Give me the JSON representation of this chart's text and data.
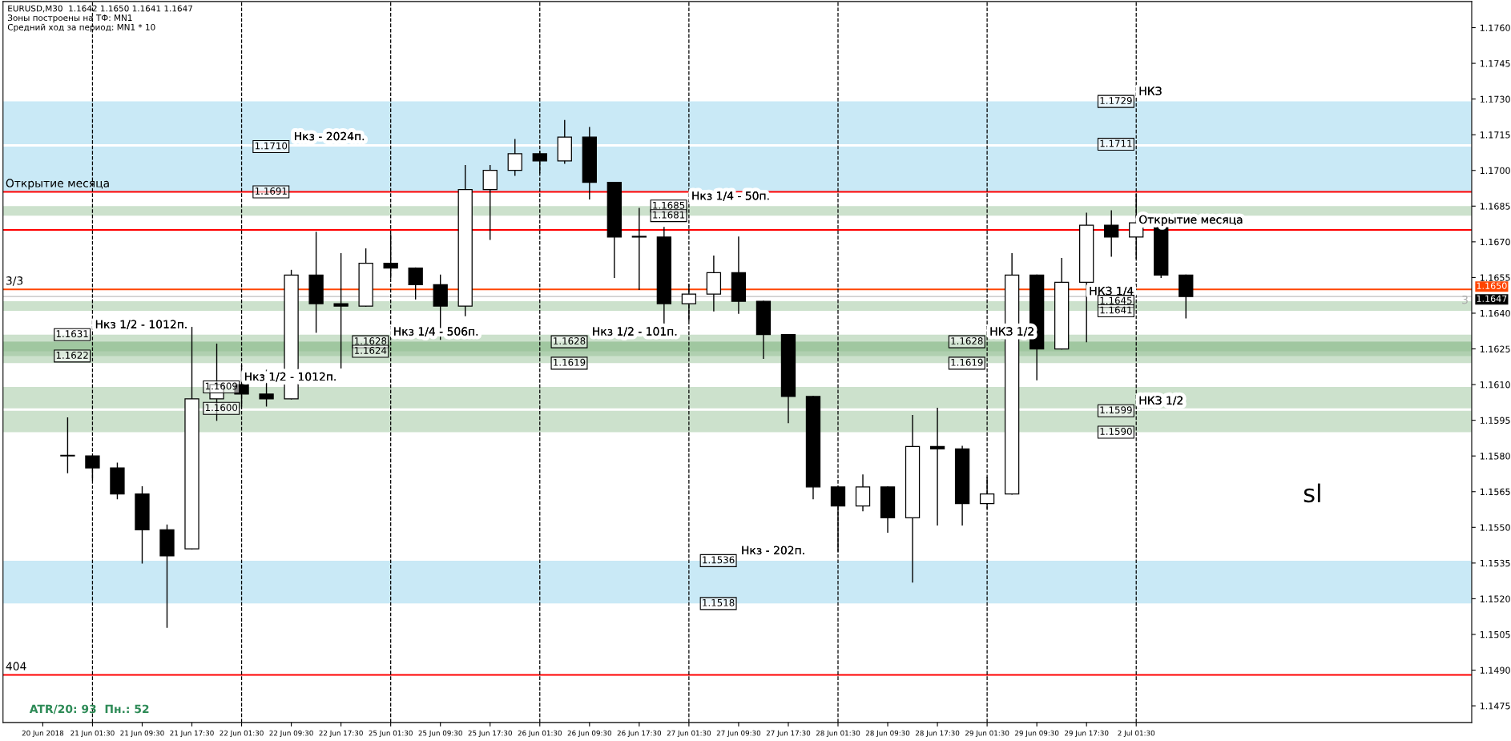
{
  "chart_data": {
    "type": "candlestick",
    "categories": [
      "20 Jun 2018",
      null,
      "21 Jun 01:30",
      null,
      "21 Jun 09:30",
      null,
      "21 Jun 17:30",
      null,
      "22 Jun 01:30",
      null,
      "22 Jun 09:30",
      null,
      "22 Jun 17:30",
      null,
      "25 Jun 01:30",
      null,
      "25 Jun 09:30",
      null,
      "25 Jun 17:30",
      null,
      "26 Jun 01:30",
      null,
      "26 Jun 09:30",
      null,
      "26 Jun 17:30",
      null,
      "27 Jun 01:30",
      null,
      "27 Jun 09:30",
      null,
      "27 Jun 17:30",
      null,
      "28 Jun 01:30",
      null,
      "28 Jun 09:30",
      null,
      "28 Jun 17:30",
      null,
      "29 Jun 01:30",
      null,
      "29 Jun 09:30",
      null,
      "29 Jun 17:30",
      null,
      "2 Jul 01:30",
      null,
      null,
      null,
      null,
      null,
      null,
      null,
      null,
      null,
      null,
      null,
      null,
      null
    ],
    "ohlc": [
      null,
      [
        1.158,
        1.1596,
        1.1573,
        1.158
      ],
      [
        1.158,
        1.158,
        1.157,
        1.1575
      ],
      [
        1.1575,
        1.1577,
        1.1562,
        1.1564
      ],
      [
        1.1564,
        1.1567,
        1.1535,
        1.1549
      ],
      [
        1.1549,
        1.1551,
        1.1508,
        1.1538
      ],
      [
        1.1541,
        1.1634,
        1.1541,
        1.1604
      ],
      [
        1.1604,
        1.1627,
        1.1595,
        1.161
      ],
      [
        1.161,
        1.1618,
        1.1601,
        1.1606
      ],
      [
        1.1606,
        1.1616,
        1.1601,
        1.1604
      ],
      [
        1.1604,
        1.1658,
        1.1604,
        1.1656
      ],
      [
        1.1656,
        1.1674,
        1.1632,
        1.1644
      ],
      [
        1.1644,
        1.1665,
        1.1617,
        1.1643
      ],
      [
        1.1643,
        1.1667,
        1.1643,
        1.1661
      ],
      [
        1.1661,
        1.1673,
        1.1655,
        1.1659
      ],
      [
        1.1659,
        1.1659,
        1.1646,
        1.1652
      ],
      [
        1.1652,
        1.1656,
        1.1629,
        1.1643
      ],
      [
        1.1643,
        1.1702,
        1.1639,
        1.1692
      ],
      [
        1.1692,
        1.1702,
        1.1671,
        1.17
      ],
      [
        1.17,
        1.1713,
        1.1698,
        1.1707
      ],
      [
        1.1707,
        1.1708,
        1.1699,
        1.1704
      ],
      [
        1.1704,
        1.1721,
        1.1703,
        1.1714
      ],
      [
        1.1714,
        1.1718,
        1.1688,
        1.1695
      ],
      [
        1.1695,
        1.1695,
        1.1655,
        1.1672
      ],
      [
        1.1672,
        1.1684,
        1.165,
        1.1672
      ],
      [
        1.1672,
        1.1676,
        1.1635,
        1.1644
      ],
      [
        1.1644,
        1.1652,
        1.1637,
        1.1648
      ],
      [
        1.1648,
        1.1664,
        1.1641,
        1.1657
      ],
      [
        1.1657,
        1.1672,
        1.164,
        1.1645
      ],
      [
        1.1645,
        1.1645,
        1.1621,
        1.1631
      ],
      [
        1.1631,
        1.1631,
        1.1594,
        1.1605
      ],
      [
        1.1605,
        1.1605,
        1.1562,
        1.1567
      ],
      [
        1.1567,
        1.1567,
        1.154,
        1.1559
      ],
      [
        1.1559,
        1.1572,
        1.1557,
        1.1567
      ],
      [
        1.1567,
        1.1567,
        1.1548,
        1.1554
      ],
      [
        1.1554,
        1.1597,
        1.1527,
        1.1584
      ],
      [
        1.1584,
        1.16,
        1.1551,
        1.1583
      ],
      [
        1.1583,
        1.1584,
        1.1551,
        1.156
      ],
      [
        1.156,
        1.1571,
        1.1558,
        1.1564
      ],
      [
        1.1564,
        1.1665,
        1.1564,
        1.1656
      ],
      [
        1.1656,
        1.1656,
        1.1612,
        1.1625
      ],
      [
        1.1625,
        1.1663,
        1.1625,
        1.1653
      ],
      [
        1.1653,
        1.1682,
        1.1628,
        1.1677
      ],
      [
        1.1677,
        1.1683,
        1.1664,
        1.1672
      ],
      [
        1.1672,
        1.169,
        1.1663,
        1.1678
      ],
      [
        1.1678,
        1.168,
        1.1655,
        1.1656
      ],
      [
        1.1656,
        1.1656,
        1.1638,
        1.1647
      ],
      null,
      null,
      null,
      null,
      null,
      null,
      null,
      null,
      null,
      null,
      null
    ],
    "ylim": [
      1.1468,
      1.1771
    ],
    "yticks": [
      {
        "value": 1.1475,
        "label": "1.1475"
      },
      {
        "value": 1.149,
        "label": "1.1490"
      },
      {
        "value": 1.1505,
        "label": "1.1505"
      },
      {
        "value": 1.152,
        "label": "1.1520"
      },
      {
        "value": 1.1535,
        "label": "1.1535"
      },
      {
        "value": 1.155,
        "label": "1.1550"
      },
      {
        "value": 1.1565,
        "label": "1.1565"
      },
      {
        "value": 1.158,
        "label": "1.1580"
      },
      {
        "value": 1.1595,
        "label": "1.1595"
      },
      {
        "value": 1.161,
        "label": "1.1610"
      },
      {
        "value": 1.1625,
        "label": "1.1625"
      },
      {
        "value": 1.164,
        "label": "1.1640"
      },
      {
        "value": 1.1655,
        "label": "1.1655"
      },
      {
        "value": 1.167,
        "label": "1.1670"
      },
      {
        "value": 1.1685,
        "label": "1.1685"
      },
      {
        "value": 1.17,
        "label": "1.1700"
      },
      {
        "value": 1.1715,
        "label": "1.1715"
      },
      {
        "value": 1.173,
        "label": "1.1730"
      },
      {
        "value": 1.1745,
        "label": "1.1745"
      },
      {
        "value": 1.176,
        "label": "1.1760"
      }
    ],
    "bands": [
      {
        "axis": "y",
        "from": 1.1691,
        "to": 1.171,
        "color": "#87ceeb"
      },
      {
        "axis": "y",
        "from": 1.1622,
        "to": 1.1631,
        "color": "#8fbc8f"
      },
      {
        "axis": "y",
        "from": 1.16,
        "to": 1.1609,
        "color": "#8fbc8f"
      },
      {
        "axis": "y",
        "from": 1.1624,
        "to": 1.1628,
        "color": "#8fbc8f"
      },
      {
        "axis": "y",
        "from": 1.1619,
        "to": 1.1628,
        "color": "#8fbc8f"
      },
      {
        "axis": "y",
        "from": 1.1681,
        "to": 1.1685,
        "color": "#8fbc8f"
      },
      {
        "axis": "y",
        "from": 1.1518,
        "to": 1.1536,
        "color": "#87ceeb"
      },
      {
        "axis": "y",
        "from": 1.1711,
        "to": 1.1729,
        "color": "#87ceeb"
      },
      {
        "axis": "y",
        "from": 1.1641,
        "to": 1.1645,
        "color": "#8fbc8f"
      },
      {
        "axis": "y",
        "from": 1.159,
        "to": 1.1599,
        "color": "#8fbc8f"
      }
    ],
    "ref_lines": [
      {
        "axis": "y",
        "value": 1.1691,
        "color": "#ff0000",
        "line_style": "solid"
      },
      {
        "axis": "y",
        "value": 1.1675,
        "color": "#ff0000",
        "line_style": "solid"
      },
      {
        "axis": "y",
        "value": 1.165,
        "label": "1.1650",
        "color": "#ff4500",
        "line_style": "solid"
      },
      {
        "axis": "y",
        "value": 1.1647,
        "label": "1.1647",
        "color": "#c0c0c0",
        "line_style": "solid"
      },
      {
        "axis": "y",
        "value": 1.1488,
        "color": "#ff0000",
        "line_style": "solid"
      },
      {
        "axis": "x",
        "value": "21 Jun 01:30",
        "color": "#000000",
        "line_style": "dashed"
      },
      {
        "axis": "x",
        "value": "22 Jun 01:30",
        "color": "#000000",
        "line_style": "dashed"
      },
      {
        "axis": "x",
        "value": "25 Jun 01:30",
        "color": "#000000",
        "line_style": "dashed"
      },
      {
        "axis": "x",
        "value": "26 Jun 01:30",
        "color": "#000000",
        "line_style": "dashed"
      },
      {
        "axis": "x",
        "value": "27 Jun 01:30",
        "color": "#000000",
        "line_style": "dashed"
      },
      {
        "axis": "x",
        "value": "28 Jun 01:30",
        "color": "#000000",
        "line_style": "dashed"
      },
      {
        "axis": "x",
        "value": "29 Jun 01:30",
        "color": "#000000",
        "line_style": "dashed"
      },
      {
        "axis": "x",
        "value": "2 Jul 01:30",
        "color": "#000000",
        "line_style": "dashed"
      }
    ],
    "annotations": [
      "EURUSD,M30  1.1642 1.1650 1.1641 1.1647",
      "Зоны построены на ТФ: MN1",
      "Средний ход за период: MN1 * 10",
      "ATR/20: 93  Пн.: 52",
      "sl",
      "3",
      {
        "text": "Открытие месяца",
        "y": 1.1691
      },
      {
        "text": "Открытие месяца",
        "x": "2 Jul 01:30",
        "y": 1.1675
      },
      {
        "text": "3/3",
        "y": 1.165
      },
      {
        "text": "404",
        "y": 1.1488
      },
      {
        "text": "Нкз - 2024п.",
        "x": "22 Jun 09:30",
        "y": 1.171
      },
      {
        "text": "1.1710",
        "x": "22 Jun 09:30",
        "y": 1.171
      },
      {
        "text": "1.1691",
        "x": "22 Jun 09:30",
        "y": 1.1691
      },
      {
        "text": "Нкз 1/2 - 1012п.",
        "x": "21 Jun 01:30",
        "y": 1.1631
      },
      {
        "text": "1.1631",
        "x": "21 Jun 01:30",
        "y": 1.1631
      },
      {
        "text": "1.1622",
        "x": "21 Jun 01:30",
        "y": 1.1622
      },
      {
        "text": "Нкз 1/2 - 1012п.",
        "x": "22 Jun 01:30",
        "y": 1.1609
      },
      {
        "text": "1.1609",
        "x": "22 Jun 01:30",
        "y": 1.1609
      },
      {
        "text": "1.1600",
        "x": "22 Jun 01:30",
        "y": 1.16
      },
      {
        "text": "Нкз 1/4 - 506п.",
        "x": "25 Jun 01:30",
        "y": 1.1628
      },
      {
        "text": "1.1628",
        "x": "25 Jun 01:30",
        "y": 1.1628
      },
      {
        "text": "1.1624",
        "x": "25 Jun 01:30",
        "y": 1.1624
      },
      {
        "text": "Нкз 1/2 - 101п.",
        "x": "26 Jun 09:30",
        "y": 1.1628
      },
      {
        "text": "1.1628",
        "x": "26 Jun 09:30",
        "y": 1.1628
      },
      {
        "text": "1.1619",
        "x": "26 Jun 09:30",
        "y": 1.1619
      },
      {
        "text": "Нкз 1/4 - 50п.",
        "x": "27 Jun 01:30",
        "y": 1.1685
      },
      {
        "text": "1.1685",
        "x": "27 Jun 01:30",
        "y": 1.1685
      },
      {
        "text": "1.1681",
        "x": "27 Jun 01:30",
        "y": 1.1681
      },
      {
        "text": "Нкз - 202п.",
        "x": "27 Jun 09:30",
        "y": 1.1536
      },
      {
        "text": "1.1536",
        "x": "27 Jun 09:30",
        "y": 1.1536
      },
      {
        "text": "1.1518",
        "x": "27 Jun 09:30",
        "y": 1.1518
      },
      {
        "text": "НКЗ 1/2",
        "x": "29 Jun 01:30",
        "y": 1.1628
      },
      {
        "text": "1.1628",
        "x": "29 Jun 01:30",
        "y": 1.1628
      },
      {
        "text": "1.1619",
        "x": "29 Jun 01:30",
        "y": 1.1619
      },
      {
        "text": "НКЗ",
        "x": "2 Jul 01:30",
        "y": 1.1729
      },
      {
        "text": "1.1729",
        "x": "2 Jul 01:30",
        "y": 1.1729
      },
      {
        "text": "1.1711",
        "x": "2 Jul 01:30",
        "y": 1.1711
      },
      {
        "text": "НКЗ 1/4",
        "x": "29 Jun 17:30",
        "y": 1.1645
      },
      {
        "text": "1.1645",
        "x": "2 Jul 01:30",
        "y": 1.1645
      },
      {
        "text": "1.1641",
        "x": "2 Jul 01:30",
        "y": 1.1641
      },
      {
        "text": "НКЗ 1/2",
        "x": "2 Jul 01:30",
        "y": 1.1599
      },
      {
        "text": "1.1599",
        "x": "2 Jul 01:30",
        "y": 1.1599
      },
      {
        "text": "1.1590",
        "x": "2 Jul 01:30",
        "y": 1.159
      }
    ]
  }
}
